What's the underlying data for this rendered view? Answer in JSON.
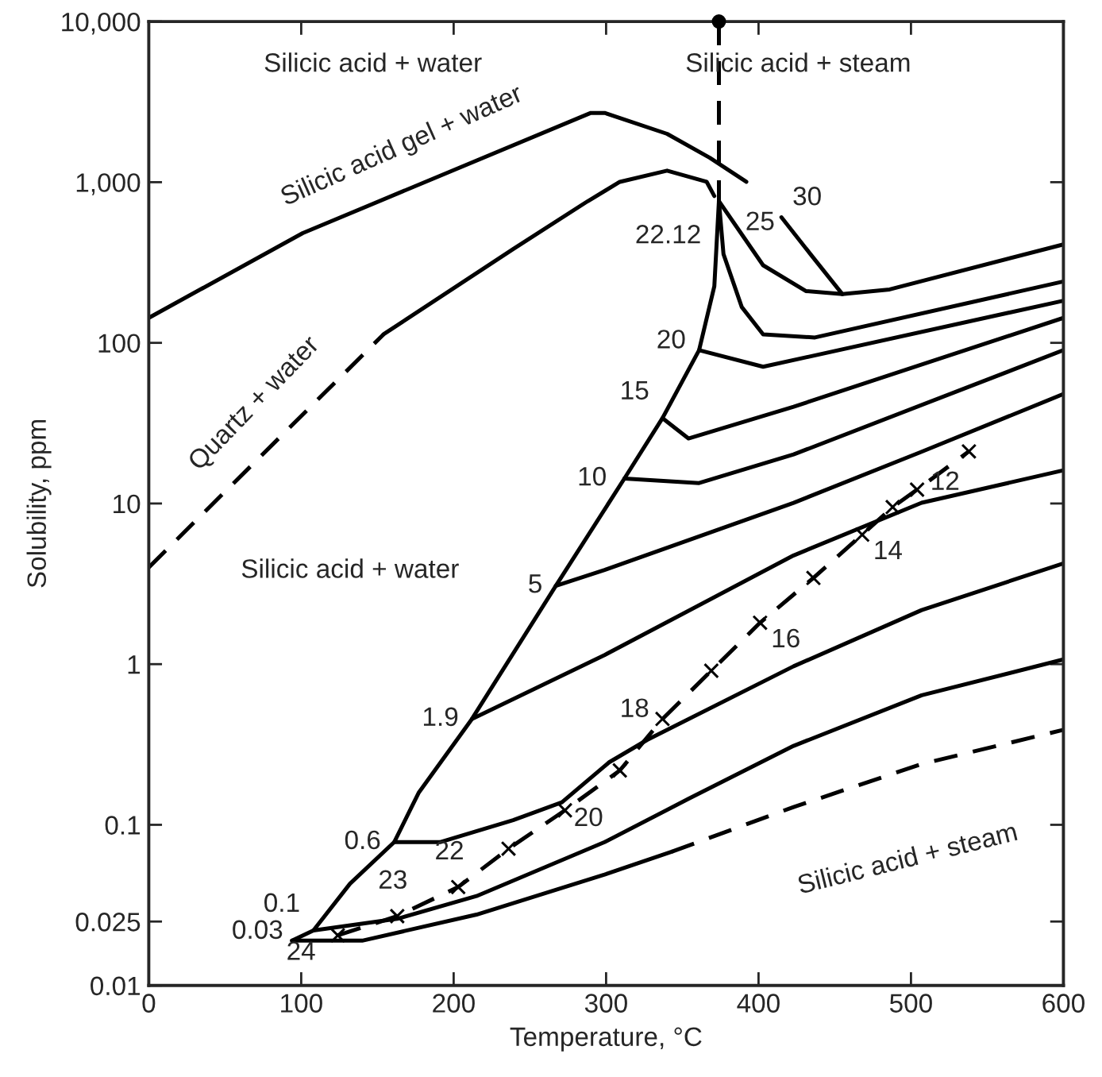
{
  "chart_data": {
    "type": "line",
    "xlabel": "Temperature, °C",
    "ylabel": "Solubility, ppm",
    "log": "y",
    "xlim": [
      0,
      600
    ],
    "ylim": [
      0.01,
      10000
    ],
    "xticks": [
      0,
      100,
      200,
      300,
      400,
      500,
      600
    ],
    "yticks": [
      0.01,
      0.025,
      0.1,
      1,
      10,
      100,
      {
        "value": 1000,
        "label": "1,000"
      },
      {
        "value": 10000,
        "label": "10,000"
      }
    ],
    "annotations": [
      "Silicic acid + water",
      "Silicic acid + steam",
      "Silicic acid + water",
      "Silicic acid + steam",
      {
        "text": "24",
        "x": 124,
        "y": 0.0205
      },
      {
        "text": "23",
        "x": 163,
        "y": 0.027
      },
      {
        "text": "22",
        "x": 203,
        "y": 0.041
      },
      {
        "text": "20",
        "x": 273,
        "y": 0.123
      },
      {
        "text": "18",
        "x": 337,
        "y": 0.456
      },
      {
        "text": "16",
        "x": 401,
        "y": 1.81
      },
      {
        "text": "14",
        "x": 468,
        "y": 6.4
      },
      {
        "text": "12",
        "x": 504,
        "y": 12.2
      }
    ],
    "series": [
      {
        "name": "Silicic acid gel + water",
        "color": "#000000",
        "line_style": "solid",
        "x": [
          0,
          101,
          290,
          299,
          340,
          368,
          392
        ],
        "values": [
          143,
          482,
          2700,
          2700,
          2000,
          1420,
          1005
        ]
      },
      {
        "name": "Quartz + water",
        "color": "#000000",
        "line_style": "dashed",
        "x": [
          0,
          154
        ],
        "values": [
          4.0,
          113
        ]
      },
      {
        "color": "#000000",
        "line_style": "solid",
        "x": [
          154,
          239,
          288,
          309,
          340,
          366,
          371
        ],
        "values": [
          113,
          383,
          762,
          1005,
          1180,
          1005,
          820
        ]
      },
      {
        "color": "#000000",
        "line_style": "solid",
        "x": [
          94,
          108,
          132,
          161,
          177,
          212,
          267,
          312,
          337,
          361,
          371,
          374
        ],
        "values": [
          0.019,
          0.022,
          0.043,
          0.078,
          0.158,
          0.456,
          3.07,
          14.3,
          34,
          90,
          225,
          762
        ]
      },
      {
        "name": "0.03",
        "color": "#000000",
        "line_style": "solid",
        "x": [
          94,
          140,
          215,
          299,
          343
        ],
        "values": [
          0.019,
          0.019,
          0.0276,
          0.049,
          0.068
        ]
      },
      {
        "color": "#000000",
        "line_style": "dashed",
        "x": [
          343,
          423,
          507,
          600
        ],
        "values": [
          0.068,
          0.129,
          0.239,
          0.39
        ]
      },
      {
        "name": "0.1",
        "color": "#000000",
        "line_style": "solid",
        "x": [
          108,
          163,
          215,
          299,
          354,
          423,
          507,
          600
        ],
        "values": [
          0.022,
          0.026,
          0.036,
          0.078,
          0.145,
          0.31,
          0.64,
          1.07
        ]
      },
      {
        "name": "0.6",
        "color": "#000000",
        "line_style": "solid",
        "x": [
          161,
          191,
          239,
          271,
          302,
          327,
          423,
          507,
          600
        ],
        "values": [
          0.078,
          0.078,
          0.107,
          0.138,
          0.245,
          0.338,
          0.97,
          2.17,
          4.24
        ]
      },
      {
        "name": "1.9",
        "color": "#000000",
        "line_style": "solid",
        "x": [
          212,
          299,
          423,
          507,
          600
        ],
        "values": [
          0.456,
          1.14,
          4.75,
          10.1,
          16.1
        ]
      },
      {
        "name": "5",
        "color": "#000000",
        "line_style": "solid",
        "x": [
          267,
          299,
          423,
          507,
          600
        ],
        "values": [
          3.07,
          3.86,
          10.1,
          21,
          48
        ]
      },
      {
        "name": "10",
        "color": "#000000",
        "line_style": "solid",
        "x": [
          312,
          361,
          423,
          600
        ],
        "values": [
          14.3,
          13.4,
          20.2,
          90
        ]
      },
      {
        "name": "15",
        "color": "#000000",
        "line_style": "solid",
        "x": [
          337,
          354,
          423,
          600
        ],
        "values": [
          34,
          25.4,
          40,
          143
        ]
      },
      {
        "name": "20",
        "color": "#000000",
        "line_style": "solid",
        "x": [
          361,
          403,
          600
        ],
        "values": [
          90,
          71,
          183
        ]
      },
      {
        "name": "22.12",
        "color": "#000000",
        "line_style": "solid",
        "x": [
          374,
          377,
          389,
          403,
          437,
          600
        ],
        "values": [
          762,
          357,
          167,
          113,
          108,
          241
        ]
      },
      {
        "name": "25",
        "color": "#000000",
        "line_style": "solid",
        "x": [
          374,
          403,
          431,
          455
        ],
        "values": [
          762,
          304,
          210,
          201
        ]
      },
      {
        "name": "30",
        "color": "#000000",
        "line_style": "solid",
        "x": [
          415,
          434,
          455,
          486,
          600
        ],
        "values": [
          605,
          357,
          201,
          215,
          410
        ]
      },
      {
        "color": "#000000",
        "line_style": "dashed",
        "x": [
          374,
          374
        ],
        "values": [
          10000,
          762
        ]
      },
      {
        "type": "scatter",
        "color": "#000000",
        "marker": "circle",
        "x": [
          374
        ],
        "values": [
          10000
        ]
      },
      {
        "color": "#000000",
        "line_style": "dashed",
        "marker": "cross",
        "x": [
          124,
          163,
          203,
          236,
          273,
          309,
          337,
          369,
          401,
          436,
          468,
          488,
          504,
          538
        ],
        "values": [
          0.0205,
          0.027,
          0.041,
          0.071,
          0.123,
          0.218,
          0.456,
          0.91,
          1.81,
          3.44,
          6.4,
          9.5,
          12.2,
          21.1
        ]
      }
    ]
  }
}
